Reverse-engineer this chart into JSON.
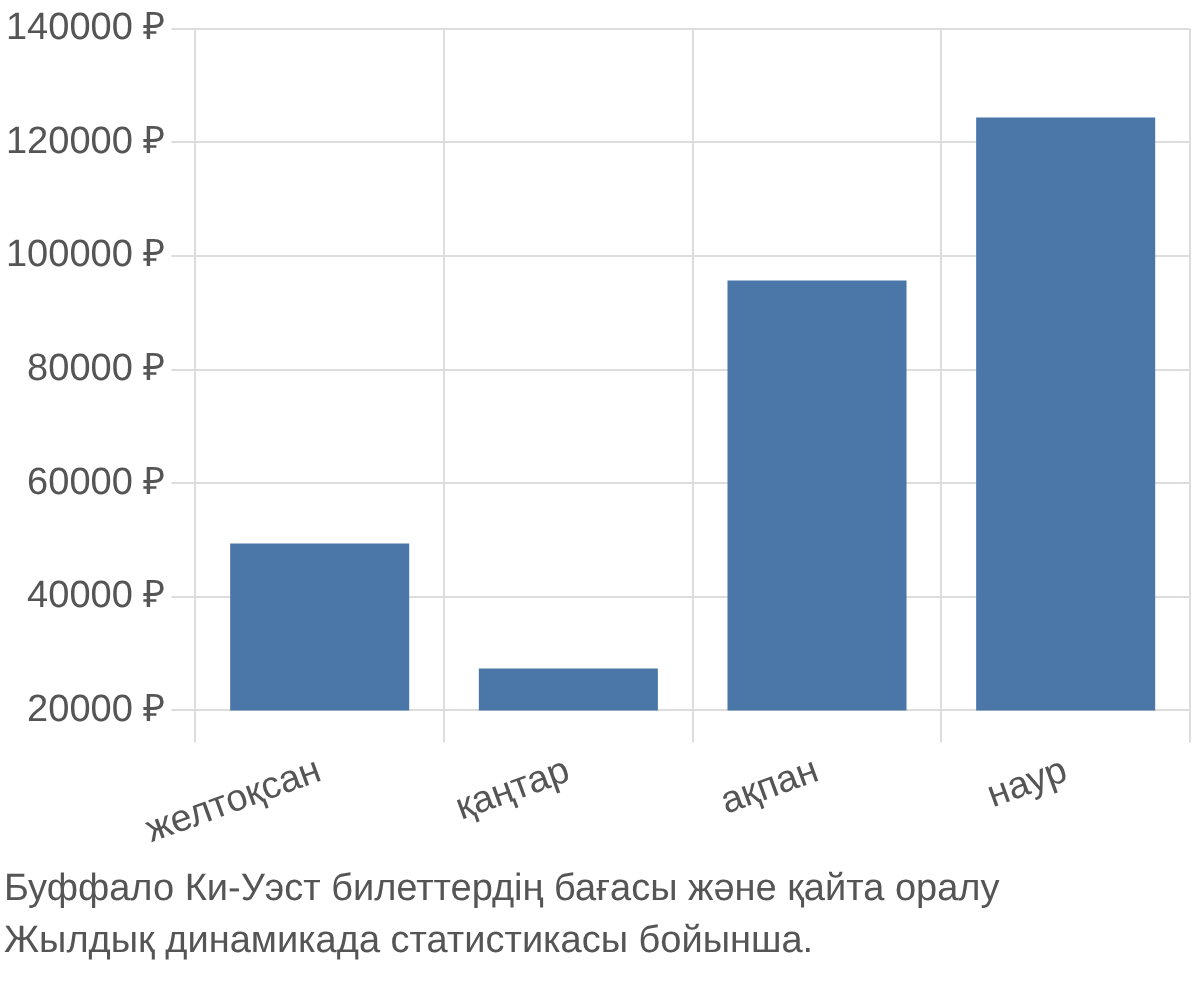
{
  "chart_data": {
    "type": "bar",
    "categories": [
      "желтоқсан",
      "қаңтар",
      "ақпан",
      "наур"
    ],
    "values": [
      49400,
      27400,
      95700,
      124400
    ],
    "color": "#4a76a8",
    "ylim": [
      20000,
      140000
    ],
    "yticks": [
      {
        "value": 20000,
        "label": "20000 ₽"
      },
      {
        "value": 40000,
        "label": "40000 ₽"
      },
      {
        "value": 60000,
        "label": "60000 ₽"
      },
      {
        "value": 80000,
        "label": "80000 ₽"
      },
      {
        "value": 100000,
        "label": "100000 ₽"
      },
      {
        "value": 120000,
        "label": "120000 ₽"
      },
      {
        "value": 140000,
        "label": "140000 ₽"
      }
    ],
    "grid": true,
    "annotations": [
      "Буффало Ки-Уэст билеттердің бағасы және қайта оралу",
      "Жылдық динамикада статистикасы бойынша."
    ]
  }
}
